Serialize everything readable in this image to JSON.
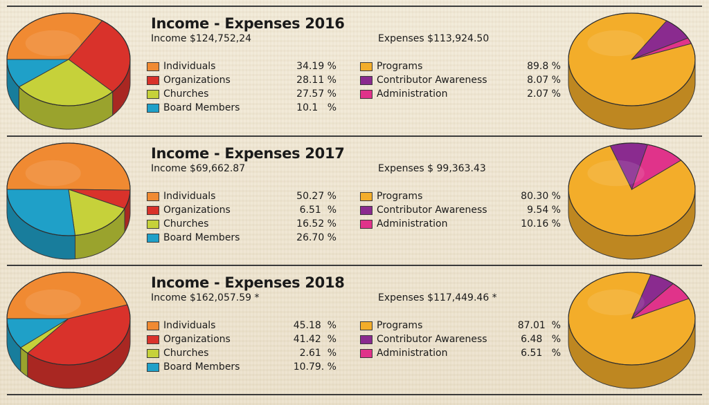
{
  "colors": {
    "individuals": "#f08a32",
    "organizations": "#d9322b",
    "churches": "#c6d13a",
    "board_members": "#1fa0c8",
    "programs": "#f3ad2a",
    "contributor_awareness": "#8a2b8f",
    "administration": "#e0338a"
  },
  "panels": [
    {
      "title": "Income - Expenses 2016",
      "income_text": "Income  $124,752,24",
      "expenses_text": "Expenses  $113,924.50",
      "income_items": [
        {
          "label": "Individuals",
          "value_text": "34.19 %"
        },
        {
          "label": "Organizations",
          "value_text": "28.11 %"
        },
        {
          "label": "Churches",
          "value_text": "27.57 %"
        },
        {
          "label": "Board Members",
          "value_text": "10.1   %"
        }
      ],
      "expense_items": [
        {
          "label": "Programs",
          "value_text": "89.8 %"
        },
        {
          "label": "Contributor Awareness",
          "value_text": "8.07 %"
        },
        {
          "label": "Administration",
          "value_text": "2.07 %"
        }
      ]
    },
    {
      "title": "Income - Expenses 2017",
      "income_text": "Income  $69,662.87",
      "expenses_text": "Expenses  $ 99,363.43",
      "income_items": [
        {
          "label": "Individuals",
          "value_text": "50.27 %"
        },
        {
          "label": "Organizations",
          "value_text": "6.51  %"
        },
        {
          "label": "Churches",
          "value_text": "16.52 %"
        },
        {
          "label": "Board Members",
          "value_text": "26.70 %"
        }
      ],
      "expense_items": [
        {
          "label": "Programs",
          "value_text": "80.30 %"
        },
        {
          "label": "Contributor Awareness",
          "value_text": "9.54 %"
        },
        {
          "label": "Administration",
          "value_text": "10.16 %"
        }
      ]
    },
    {
      "title": "Income - Expenses 2018",
      "income_text": "Income  $162,057.59 *",
      "expenses_text": "Expenses  $117,449.46 *",
      "income_items": [
        {
          "label": "Individuals",
          "value_text": "45.18  %"
        },
        {
          "label": "Organizations",
          "value_text": "41.42  %"
        },
        {
          "label": "Churches",
          "value_text": "2.61  %"
        },
        {
          "label": "Board Members",
          "value_text": "10.79. %"
        }
      ],
      "expense_items": [
        {
          "label": "Programs",
          "value_text": "87.01  %"
        },
        {
          "label": "Contributor Awareness",
          "value_text": "6.48   %"
        },
        {
          "label": "Administration",
          "value_text": "6.51   %"
        }
      ]
    }
  ],
  "chart_data": [
    {
      "type": "pie",
      "title": "Income - Expenses 2016",
      "series_group": "income",
      "total_text": "$124,752,24",
      "categories": [
        "Individuals",
        "Organizations",
        "Churches",
        "Board Members"
      ],
      "values": [
        34.19,
        28.11,
        27.57,
        10.1
      ]
    },
    {
      "type": "pie",
      "title": "Income - Expenses 2016",
      "series_group": "expenses",
      "total_text": "$113,924.50",
      "categories": [
        "Programs",
        "Contributor Awareness",
        "Administration"
      ],
      "values": [
        89.8,
        8.07,
        2.07
      ]
    },
    {
      "type": "pie",
      "title": "Income - Expenses 2017",
      "series_group": "income",
      "total_text": "$69,662.87",
      "categories": [
        "Individuals",
        "Organizations",
        "Churches",
        "Board Members"
      ],
      "values": [
        50.27,
        6.51,
        16.52,
        26.7
      ]
    },
    {
      "type": "pie",
      "title": "Income - Expenses 2017",
      "series_group": "expenses",
      "total_text": "$ 99,363.43",
      "categories": [
        "Programs",
        "Contributor Awareness",
        "Administration"
      ],
      "values": [
        80.3,
        9.54,
        10.16
      ]
    },
    {
      "type": "pie",
      "title": "Income - Expenses 2018",
      "series_group": "income",
      "total_text": "$162,057.59 *",
      "categories": [
        "Individuals",
        "Organizations",
        "Churches",
        "Board Members"
      ],
      "values": [
        45.18,
        41.42,
        2.61,
        10.79
      ]
    },
    {
      "type": "pie",
      "title": "Income - Expenses 2018",
      "series_group": "expenses",
      "total_text": "$117,449.46 *",
      "categories": [
        "Programs",
        "Contributor Awareness",
        "Administration"
      ],
      "values": [
        87.01,
        6.48,
        6.51
      ]
    }
  ]
}
